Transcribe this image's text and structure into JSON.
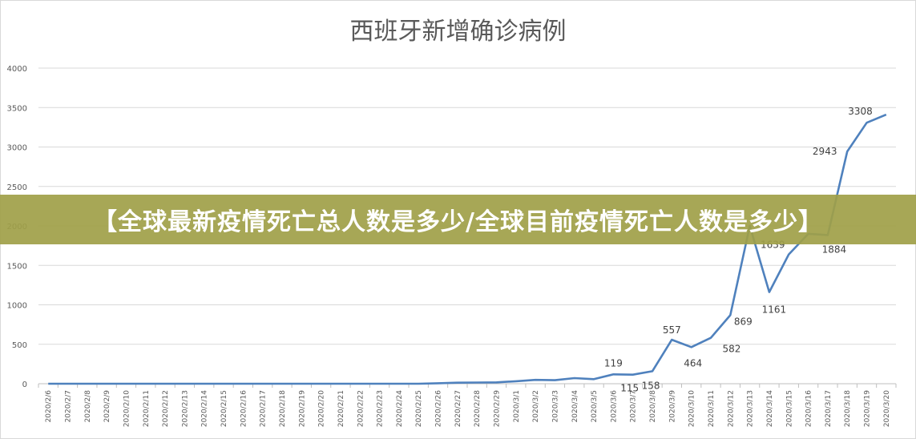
{
  "chart_data": {
    "type": "line",
    "title": "西班牙新增确诊病例",
    "xlabel": "",
    "ylabel": "",
    "ylim": [
      0,
      4000
    ],
    "yticks": [
      0,
      500,
      1000,
      1500,
      2000,
      2500,
      3000,
      3500,
      4000
    ],
    "grid": true,
    "categories": [
      "2020/2/6",
      "2020/2/7",
      "2020/2/8",
      "2020/2/9",
      "2020/2/10",
      "2020/2/11",
      "2020/2/12",
      "2020/2/13",
      "2020/2/14",
      "2020/2/15",
      "2020/2/16",
      "2020/2/17",
      "2020/2/18",
      "2020/2/19",
      "2020/2/20",
      "2020/2/21",
      "2020/2/22",
      "2020/2/23",
      "2020/2/24",
      "2020/2/25",
      "2020/2/26",
      "2020/2/27",
      "2020/2/28",
      "2020/2/29",
      "2020/3/1",
      "2020/3/2",
      "2020/3/3",
      "2020/3/4",
      "2020/3/5",
      "2020/3/6",
      "2020/3/7",
      "2020/3/8",
      "2020/3/9",
      "2020/3/10",
      "2020/3/11",
      "2020/3/12",
      "2020/3/13",
      "2020/3/14",
      "2020/3/15",
      "2020/3/16",
      "2020/3/17",
      "2020/3/18",
      "2020/3/19",
      "2020/3/20"
    ],
    "series": [
      {
        "name": "新增确诊病例",
        "color": "#4f81bd",
        "values": [
          0,
          0,
          0,
          0,
          0,
          0,
          0,
          0,
          0,
          0,
          0,
          0,
          0,
          0,
          0,
          0,
          0,
          0,
          0,
          0,
          6,
          13,
          15,
          17,
          31,
          49,
          45,
          71,
          58,
          119,
          115,
          158,
          557,
          464,
          582,
          869,
          2000,
          1161,
          1639,
          1900,
          1884,
          2943,
          3308,
          3410
        ]
      }
    ],
    "data_labels": [
      {
        "index": 29,
        "text": "119"
      },
      {
        "index": 30,
        "text": "115"
      },
      {
        "index": 31,
        "text": "158"
      },
      {
        "index": 32,
        "text": "557"
      },
      {
        "index": 33,
        "text": "464"
      },
      {
        "index": 34,
        "text": "582"
      },
      {
        "index": 35,
        "text": "869"
      },
      {
        "index": 37,
        "text": "1161"
      },
      {
        "index": 38,
        "text": "1639"
      },
      {
        "index": 40,
        "text": "1884"
      },
      {
        "index": 41,
        "text": "2943"
      },
      {
        "index": 42,
        "text": "3308"
      }
    ]
  },
  "banner": {
    "text": "【全球最新疫情死亡总人数是多少/全球目前疫情死亡人数是多少】"
  }
}
